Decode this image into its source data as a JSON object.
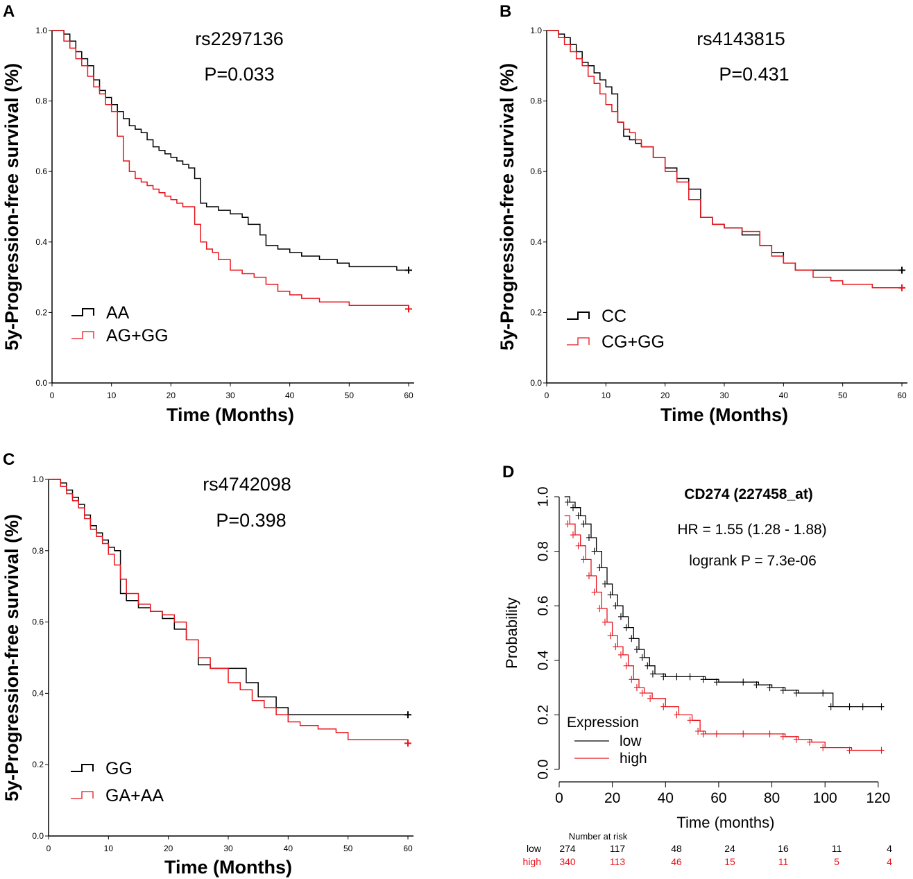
{
  "colors": {
    "black": "#000000",
    "red": "#e8141c"
  },
  "chart_data": [
    {
      "type": "line",
      "subtype": "kaplan-meier",
      "panel": "A",
      "title": "rs2297136",
      "annotations": [
        "P=0.033"
      ],
      "xlabel": "Time (Months)",
      "ylabel": "5y-Progression-free survival (%)",
      "xlim": [
        0,
        60
      ],
      "ylim": [
        0,
        1.0
      ],
      "xticks": [
        "0",
        "10",
        "20",
        "30",
        "40",
        "50",
        "60"
      ],
      "yticks": [
        "0.0",
        "0.2",
        "0.4",
        "0.6",
        "0.8",
        "1.0"
      ],
      "legend_position": "bottom-left",
      "series": [
        {
          "name": "AA",
          "color": "#000000",
          "x": [
            0,
            2,
            3,
            4,
            5,
            6,
            7,
            8,
            9,
            10,
            11,
            12,
            13,
            14,
            15,
            16,
            17,
            18,
            19,
            20,
            21,
            22,
            23,
            24,
            25,
            26,
            28,
            30,
            32,
            33,
            35,
            36,
            38,
            40,
            42,
            45,
            48,
            50,
            52,
            55,
            58,
            60
          ],
          "y": [
            1.0,
            0.99,
            0.97,
            0.94,
            0.92,
            0.9,
            0.86,
            0.83,
            0.81,
            0.79,
            0.77,
            0.75,
            0.73,
            0.72,
            0.71,
            0.69,
            0.67,
            0.66,
            0.65,
            0.64,
            0.63,
            0.62,
            0.61,
            0.58,
            0.51,
            0.5,
            0.49,
            0.48,
            0.47,
            0.45,
            0.42,
            0.39,
            0.38,
            0.37,
            0.36,
            0.35,
            0.34,
            0.33,
            0.33,
            0.33,
            0.32,
            0.32
          ]
        },
        {
          "name": "AG+GG",
          "color": "#e8141c",
          "x": [
            0,
            2,
            3,
            4,
            5,
            6,
            7,
            8,
            9,
            10,
            11,
            12,
            13,
            14,
            15,
            16,
            17,
            18,
            19,
            20,
            21,
            22,
            24,
            25,
            26,
            27,
            28,
            30,
            32,
            34,
            36,
            38,
            40,
            42,
            45,
            50,
            55,
            60
          ],
          "y": [
            1.0,
            0.97,
            0.95,
            0.92,
            0.9,
            0.87,
            0.84,
            0.82,
            0.79,
            0.77,
            0.7,
            0.63,
            0.6,
            0.58,
            0.57,
            0.56,
            0.55,
            0.54,
            0.53,
            0.52,
            0.51,
            0.5,
            0.45,
            0.4,
            0.38,
            0.37,
            0.35,
            0.32,
            0.31,
            0.3,
            0.28,
            0.26,
            0.25,
            0.24,
            0.23,
            0.22,
            0.22,
            0.21
          ]
        }
      ]
    },
    {
      "type": "line",
      "subtype": "kaplan-meier",
      "panel": "B",
      "title": "rs4143815",
      "annotations": [
        "P=0.431"
      ],
      "xlabel": "Time (Months)",
      "ylabel": "5y-Progression-free survival (%)",
      "xlim": [
        0,
        60
      ],
      "ylim": [
        0,
        1.0
      ],
      "xticks": [
        "0",
        "10",
        "20",
        "30",
        "40",
        "50",
        "60"
      ],
      "yticks": [
        "0.0",
        "0.2",
        "0.4",
        "0.6",
        "0.8",
        "1.0"
      ],
      "legend_position": "bottom-left",
      "series": [
        {
          "name": "CC",
          "color": "#000000",
          "x": [
            0,
            2,
            3,
            4,
            5,
            6,
            7,
            8,
            9,
            10,
            11,
            12,
            13,
            14,
            15,
            16,
            18,
            20,
            22,
            24,
            26,
            28,
            30,
            33,
            36,
            38,
            40,
            42,
            45,
            50,
            55,
            60
          ],
          "y": [
            1.0,
            0.99,
            0.98,
            0.96,
            0.94,
            0.91,
            0.9,
            0.88,
            0.86,
            0.84,
            0.82,
            0.74,
            0.7,
            0.69,
            0.68,
            0.67,
            0.64,
            0.61,
            0.58,
            0.55,
            0.47,
            0.45,
            0.44,
            0.42,
            0.39,
            0.37,
            0.34,
            0.32,
            0.32,
            0.32,
            0.32,
            0.32
          ]
        },
        {
          "name": "CG+GG",
          "color": "#e8141c",
          "x": [
            0,
            2,
            3,
            4,
            5,
            6,
            7,
            8,
            9,
            10,
            11,
            12,
            13,
            14,
            15,
            16,
            18,
            20,
            22,
            24,
            26,
            28,
            30,
            33,
            36,
            38,
            40,
            42,
            45,
            48,
            50,
            55,
            60
          ],
          "y": [
            1.0,
            0.98,
            0.96,
            0.94,
            0.92,
            0.9,
            0.87,
            0.85,
            0.82,
            0.79,
            0.77,
            0.74,
            0.72,
            0.71,
            0.69,
            0.67,
            0.64,
            0.6,
            0.57,
            0.52,
            0.47,
            0.45,
            0.44,
            0.43,
            0.39,
            0.36,
            0.34,
            0.32,
            0.3,
            0.29,
            0.28,
            0.27,
            0.27
          ]
        }
      ]
    },
    {
      "type": "line",
      "subtype": "kaplan-meier",
      "panel": "C",
      "title": "rs4742098",
      "annotations": [
        "P=0.398"
      ],
      "xlabel": "Time (Months)",
      "ylabel": "5y-Progression-free survival (%)",
      "xlim": [
        0,
        60
      ],
      "ylim": [
        0,
        1.0
      ],
      "xticks": [
        "0",
        "10",
        "20",
        "30",
        "40",
        "50",
        "60"
      ],
      "yticks": [
        "0.0",
        "0.2",
        "0.4",
        "0.6",
        "0.8",
        "1.0"
      ],
      "legend_position": "bottom-left",
      "series": [
        {
          "name": "GG",
          "color": "#000000",
          "x": [
            0,
            2,
            3,
            4,
            5,
            6,
            7,
            8,
            9,
            10,
            11,
            12,
            13,
            15,
            17,
            19,
            21,
            23,
            25,
            27,
            30,
            33,
            35,
            38,
            40,
            42,
            45,
            50,
            55,
            60
          ],
          "y": [
            1.0,
            0.99,
            0.97,
            0.95,
            0.93,
            0.9,
            0.87,
            0.85,
            0.83,
            0.81,
            0.8,
            0.68,
            0.66,
            0.64,
            0.63,
            0.61,
            0.58,
            0.55,
            0.48,
            0.47,
            0.47,
            0.43,
            0.39,
            0.36,
            0.34,
            0.34,
            0.34,
            0.34,
            0.34,
            0.34
          ]
        },
        {
          "name": "GA+AA",
          "color": "#e8141c",
          "x": [
            0,
            2,
            3,
            4,
            5,
            6,
            7,
            8,
            9,
            10,
            11,
            12,
            13,
            15,
            17,
            19,
            21,
            23,
            25,
            27,
            30,
            32,
            34,
            36,
            38,
            40,
            42,
            45,
            48,
            50,
            55,
            60
          ],
          "y": [
            1.0,
            0.98,
            0.96,
            0.94,
            0.92,
            0.89,
            0.86,
            0.84,
            0.82,
            0.79,
            0.76,
            0.72,
            0.68,
            0.65,
            0.63,
            0.62,
            0.6,
            0.55,
            0.5,
            0.47,
            0.43,
            0.41,
            0.38,
            0.36,
            0.34,
            0.32,
            0.31,
            0.3,
            0.29,
            0.27,
            0.27,
            0.26
          ]
        }
      ]
    },
    {
      "type": "line",
      "subtype": "kaplan-meier",
      "panel": "D",
      "title": "CD274 (227458_at)",
      "annotations": [
        "HR = 1.55 (1.28 - 1.88)",
        "logrank P = 7.3e-06"
      ],
      "xlabel": "Time (months)",
      "ylabel": "Probability",
      "xlim": [
        0,
        125
      ],
      "ylim": [
        0,
        1.0
      ],
      "xticks": [
        "0",
        "20",
        "40",
        "60",
        "80",
        "100",
        "120"
      ],
      "yticks": [
        "0.0",
        "0.2",
        "0.4",
        "0.6",
        "0.8",
        "1.0"
      ],
      "legend_title": "Expression",
      "legend_position": "bottom-left",
      "series": [
        {
          "name": "low",
          "color": "#000000",
          "x": [
            2,
            4,
            6,
            8,
            10,
            12,
            14,
            16,
            18,
            20,
            22,
            24,
            26,
            28,
            30,
            32,
            34,
            36,
            40,
            45,
            50,
            55,
            60,
            70,
            75,
            80,
            85,
            90,
            100,
            103,
            110,
            115,
            122
          ],
          "y": [
            1.0,
            0.98,
            0.96,
            0.93,
            0.9,
            0.85,
            0.8,
            0.74,
            0.68,
            0.64,
            0.6,
            0.56,
            0.52,
            0.48,
            0.44,
            0.41,
            0.38,
            0.35,
            0.34,
            0.34,
            0.34,
            0.33,
            0.32,
            0.32,
            0.31,
            0.3,
            0.29,
            0.28,
            0.28,
            0.23,
            0.23,
            0.23,
            0.23
          ]
        },
        {
          "name": "high",
          "color": "#e8141c",
          "x": [
            2,
            4,
            6,
            8,
            10,
            12,
            14,
            16,
            18,
            20,
            22,
            24,
            26,
            28,
            30,
            32,
            35,
            40,
            45,
            50,
            53,
            55,
            60,
            70,
            80,
            85,
            90,
            95,
            100,
            110,
            122
          ],
          "y": [
            0.93,
            0.9,
            0.86,
            0.82,
            0.77,
            0.71,
            0.65,
            0.59,
            0.54,
            0.49,
            0.45,
            0.42,
            0.38,
            0.33,
            0.3,
            0.28,
            0.26,
            0.23,
            0.2,
            0.18,
            0.14,
            0.13,
            0.13,
            0.13,
            0.13,
            0.12,
            0.11,
            0.1,
            0.08,
            0.07,
            0.07
          ]
        }
      ],
      "risk_table": {
        "title": "Number at risk",
        "columns": [
          "0",
          "20",
          "40",
          "60",
          "80",
          "100",
          "120"
        ],
        "rows": [
          {
            "label": "low",
            "values": [
              "274",
              "117",
              "48",
              "24",
              "16",
              "11",
              "4"
            ]
          },
          {
            "label": "high",
            "values": [
              "340",
              "113",
              "46",
              "15",
              "11",
              "5",
              "4"
            ]
          }
        ]
      }
    }
  ]
}
